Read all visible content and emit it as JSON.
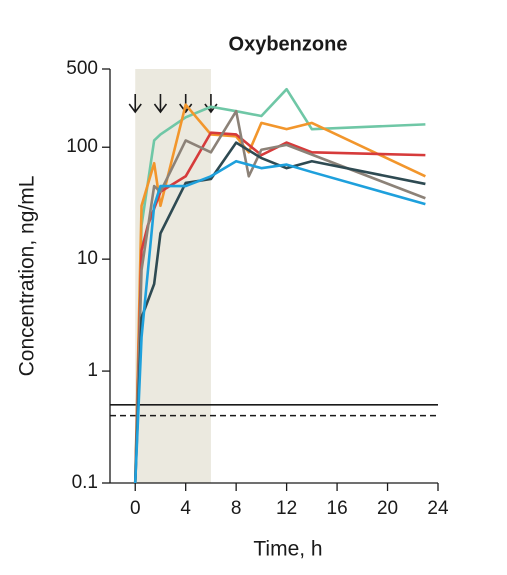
{
  "chart_data": {
    "type": "line",
    "title": "Oxybenzone",
    "xlabel": "Time, h",
    "ylabel": "Concentration, ng/mL",
    "log_y": true,
    "xlim": [
      -2,
      24
    ],
    "xticks": [
      0,
      4,
      8,
      12,
      16,
      20,
      24
    ],
    "ylim": [
      0.1,
      500
    ],
    "yticks": [
      0.1,
      1,
      10,
      100,
      500
    ],
    "shade": [
      0,
      6
    ],
    "shade_color": "#ebe9df",
    "dosing_times": [
      0,
      2,
      4,
      6
    ],
    "reference_lines": [
      {
        "value": 0.5,
        "style": "solid"
      },
      {
        "value": 0.4,
        "style": "dashed"
      }
    ],
    "series": [
      {
        "color": "#6fc7a6",
        "x": [
          0,
          0.5,
          1.5,
          2,
          4,
          6,
          8,
          10,
          12,
          14,
          23
        ],
        "values": [
          0.1,
          20,
          115,
          130,
          185,
          230,
          210,
          190,
          330,
          145,
          160
        ]
      },
      {
        "color": "#f2962c",
        "x": [
          0,
          0.5,
          1.5,
          2,
          4,
          6,
          8,
          9,
          10,
          12,
          14,
          23
        ],
        "values": [
          0.1,
          30,
          72,
          30,
          240,
          130,
          125,
          90,
          165,
          145,
          165,
          55
        ]
      },
      {
        "color": "#d63b3b",
        "x": [
          0,
          0.5,
          1,
          2,
          4,
          6,
          8,
          10,
          12,
          14,
          23
        ],
        "values": [
          0.1,
          12,
          20,
          40,
          55,
          135,
          130,
          85,
          110,
          90,
          85
        ]
      },
      {
        "color": "#8c8278",
        "x": [
          0,
          0.5,
          1.5,
          2,
          4,
          6,
          8,
          9,
          10,
          12,
          23
        ],
        "values": [
          0.1,
          8,
          45,
          40,
          115,
          90,
          210,
          55,
          95,
          105,
          35
        ]
      },
      {
        "color": "#2e4a52",
        "x": [
          0,
          0.5,
          1.5,
          2,
          4,
          6,
          8,
          10,
          12,
          14,
          23
        ],
        "values": [
          0.1,
          3,
          6,
          17,
          48,
          52,
          110,
          80,
          65,
          75,
          47
        ]
      },
      {
        "color": "#1ea0dc",
        "x": [
          0,
          0.5,
          1.5,
          2,
          4,
          6,
          8,
          10,
          12,
          14,
          23
        ],
        "values": [
          0.1,
          2,
          30,
          45,
          45,
          55,
          75,
          65,
          70,
          60,
          31
        ]
      }
    ]
  }
}
